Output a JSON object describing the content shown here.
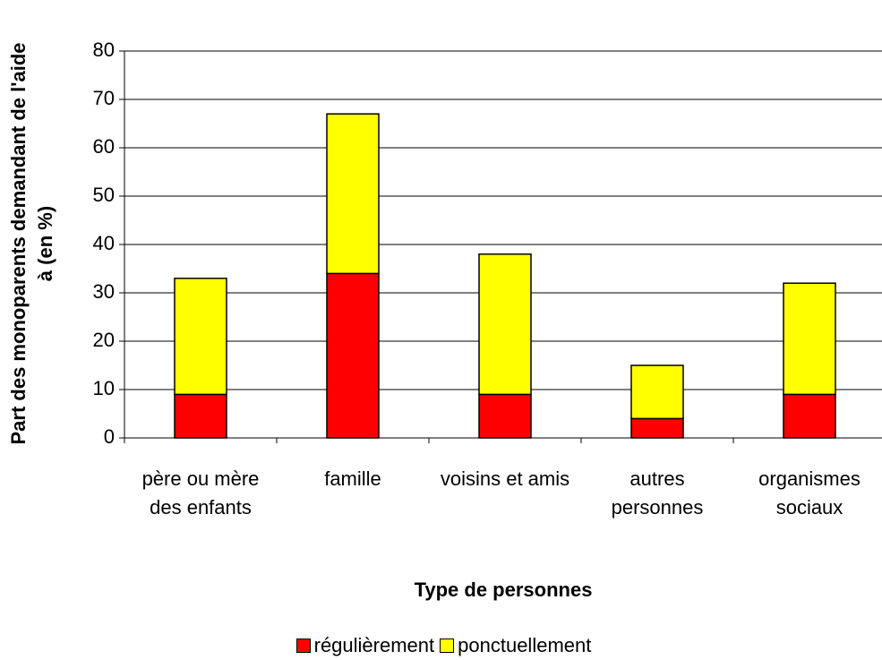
{
  "chart_data": {
    "type": "stacked_bar",
    "categories": [
      "père ou mère des enfants",
      "famille",
      "voisins et amis",
      "autres personnes",
      "organismes sociaux"
    ],
    "series": [
      {
        "name": "régulièrement",
        "color": "#ff0000",
        "values": [
          9,
          34,
          9,
          4,
          9
        ]
      },
      {
        "name": "ponctuellement",
        "color": "#ffff00",
        "values": [
          24,
          33,
          29,
          11,
          23
        ]
      }
    ],
    "xlabel": "Type de personnes",
    "ylabel": [
      "Part des monoparents demandant de l'aide",
      "à (en %)"
    ],
    "ylim": [
      0,
      80
    ],
    "yticks": [
      0,
      10,
      20,
      30,
      40,
      50,
      60,
      70,
      80
    ],
    "grid": true
  }
}
